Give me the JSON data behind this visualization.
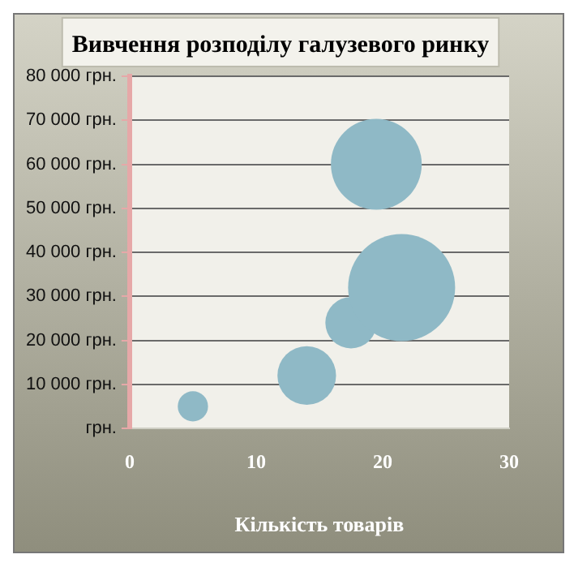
{
  "chart_data": {
    "type": "bubble",
    "title": "Вивчення розподілу галузевого ринку",
    "xlabel": "Кількість товарів",
    "x": [
      5,
      14,
      17.5,
      21.5,
      19.5
    ],
    "series": [
      {
        "color": "#8fb9c6",
        "values": [
          5000,
          12000,
          24000,
          32000,
          60000
        ],
        "sizes": [
          0.08,
          0.3,
          0.23,
          1,
          0.72
        ]
      }
    ],
    "xlim": [
      0,
      30
    ],
    "xticks": [
      0,
      10,
      20,
      30
    ],
    "ylim": [
      0,
      80000
    ],
    "yticks": [
      {
        "value": 0,
        "label": "грн."
      },
      {
        "value": 10000,
        "label": "10 000 грн."
      },
      {
        "value": 20000,
        "label": "20 000 грн."
      },
      {
        "value": 30000,
        "label": "30 000 грн."
      },
      {
        "value": 40000,
        "label": "40 000 грн."
      },
      {
        "value": 50000,
        "label": "50 000 грн."
      },
      {
        "value": 60000,
        "label": "60 000 грн."
      },
      {
        "value": 70000,
        "label": "70 000 грн."
      },
      {
        "value": 80000,
        "label": "80 000 грн."
      }
    ],
    "grid": "y",
    "legend": false
  }
}
